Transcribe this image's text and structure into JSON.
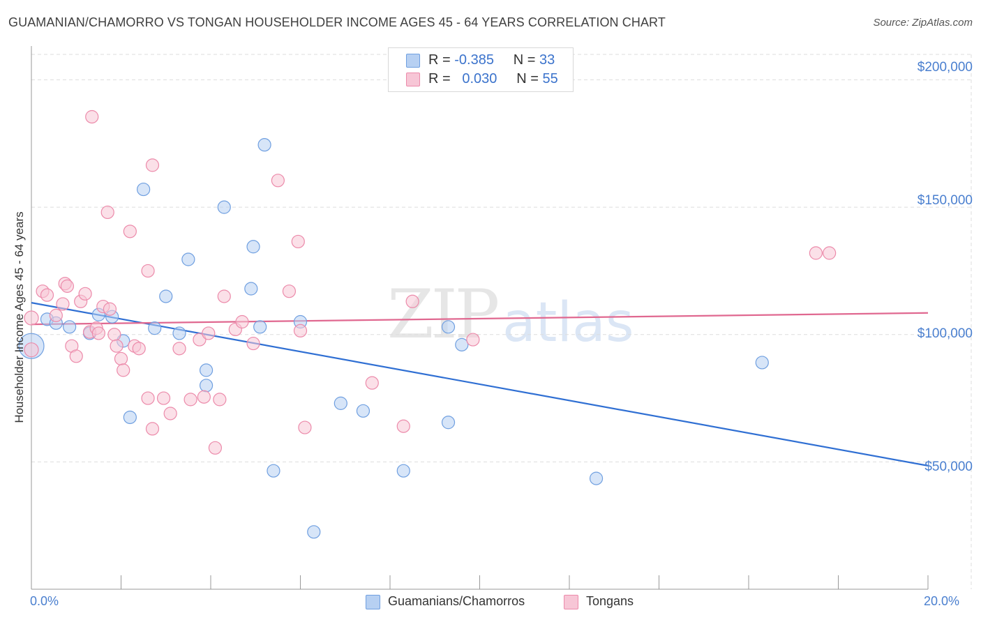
{
  "title": "GUAMANIAN/CHAMORRO VS TONGAN HOUSEHOLDER INCOME AGES 45 - 64 YEARS CORRELATION CHART",
  "source": "Source: ZipAtlas.com",
  "watermark": {
    "zip": "ZIP",
    "atlas": "atlas"
  },
  "legend_top": {
    "rows": [
      {
        "r_label": "R =",
        "r_value": "-0.385",
        "n_label": "N =",
        "n_value": "33"
      },
      {
        "r_label": "R =",
        "r_value": "0.030",
        "n_label": "N =",
        "n_value": "55"
      }
    ]
  },
  "legend_bottom": {
    "series1": "Guamanians/Chamorros",
    "series2": "Tongans"
  },
  "colors": {
    "blue_fill": "#b7d0f2",
    "blue_stroke": "#6f9fe0",
    "blue_line": "#2f6fd3",
    "pink_fill": "#f7c6d6",
    "pink_stroke": "#ec8aaa",
    "pink_line": "#e06890",
    "grid": "#dddddd",
    "axis": "#999999"
  },
  "chart_data": {
    "type": "scatter",
    "title": "GUAMANIAN/CHAMORRO VS TONGAN HOUSEHOLDER INCOME AGES 45 - 64 YEARS CORRELATION CHART",
    "xlabel": "",
    "ylabel": "Householder Income Ages 45 - 64 years",
    "xlim": [
      0,
      20
    ],
    "ylim": [
      0,
      210000
    ],
    "x_tick_labels": [
      "0.0%",
      "20.0%"
    ],
    "y_ticks": [
      50000,
      100000,
      150000,
      200000
    ],
    "y_tick_labels": [
      "$50,000",
      "$100,000",
      "$150,000",
      "$200,000"
    ],
    "series": [
      {
        "name": "Guamanians/Chamorros",
        "color": "blue",
        "points": [
          [
            0.0,
            95500,
            18
          ],
          [
            0.35,
            106000,
            9
          ],
          [
            0.55,
            104500,
            9
          ],
          [
            0.85,
            103000,
            9
          ],
          [
            1.3,
            100500,
            9
          ],
          [
            1.5,
            107800,
            9
          ],
          [
            1.8,
            107000,
            9
          ],
          [
            2.05,
            97500,
            9
          ],
          [
            2.2,
            67500,
            9
          ],
          [
            2.5,
            157000,
            9
          ],
          [
            2.75,
            102500,
            9
          ],
          [
            3.0,
            115000,
            9
          ],
          [
            3.3,
            100500,
            9
          ],
          [
            3.5,
            129500,
            9
          ],
          [
            3.9,
            80000,
            9
          ],
          [
            3.9,
            86000,
            9
          ],
          [
            4.3,
            150000,
            9
          ],
          [
            4.9,
            118000,
            9
          ],
          [
            4.95,
            134500,
            9
          ],
          [
            5.1,
            103000,
            9
          ],
          [
            5.2,
            174500,
            9
          ],
          [
            5.4,
            46500,
            9
          ],
          [
            6.0,
            105000,
            9
          ],
          [
            6.3,
            22500,
            9
          ],
          [
            6.9,
            73000,
            9
          ],
          [
            7.4,
            70000,
            9
          ],
          [
            8.3,
            46500,
            9
          ],
          [
            9.3,
            103000,
            9
          ],
          [
            9.3,
            65500,
            9
          ],
          [
            9.6,
            96000,
            9
          ],
          [
            12.6,
            43500,
            9
          ],
          [
            16.3,
            89000,
            9
          ]
        ]
      },
      {
        "name": "Tongans",
        "color": "pink",
        "points": [
          [
            0.0,
            94000,
            10
          ],
          [
            0.0,
            106500,
            10
          ],
          [
            0.25,
            117000,
            9
          ],
          [
            0.35,
            115500,
            9
          ],
          [
            0.55,
            107500,
            9
          ],
          [
            0.7,
            112000,
            9
          ],
          [
            0.75,
            120000,
            9
          ],
          [
            0.8,
            119000,
            9
          ],
          [
            0.9,
            95500,
            9
          ],
          [
            1.0,
            91500,
            9
          ],
          [
            1.1,
            113000,
            9
          ],
          [
            1.2,
            116000,
            9
          ],
          [
            1.3,
            101000,
            9
          ],
          [
            1.35,
            185500,
            9
          ],
          [
            1.45,
            102500,
            9
          ],
          [
            1.5,
            100500,
            9
          ],
          [
            1.6,
            111000,
            9
          ],
          [
            1.7,
            148000,
            9
          ],
          [
            1.75,
            110000,
            9
          ],
          [
            1.85,
            100000,
            9
          ],
          [
            1.9,
            95500,
            9
          ],
          [
            2.0,
            90500,
            9
          ],
          [
            2.05,
            86000,
            9
          ],
          [
            2.2,
            140500,
            9
          ],
          [
            2.3,
            95500,
            9
          ],
          [
            2.4,
            94500,
            9
          ],
          [
            2.6,
            125000,
            9
          ],
          [
            2.6,
            75000,
            9
          ],
          [
            2.7,
            63000,
            9
          ],
          [
            2.7,
            166500,
            9
          ],
          [
            2.95,
            75000,
            9
          ],
          [
            3.1,
            69000,
            9
          ],
          [
            3.3,
            94500,
            9
          ],
          [
            3.55,
            74500,
            9
          ],
          [
            3.75,
            98000,
            9
          ],
          [
            3.85,
            75500,
            9
          ],
          [
            3.95,
            100500,
            9
          ],
          [
            4.1,
            55500,
            9
          ],
          [
            4.2,
            74500,
            9
          ],
          [
            4.3,
            115000,
            9
          ],
          [
            4.55,
            102000,
            9
          ],
          [
            4.7,
            105000,
            9
          ],
          [
            4.95,
            96500,
            9
          ],
          [
            5.5,
            160500,
            9
          ],
          [
            5.75,
            117000,
            9
          ],
          [
            5.95,
            136500,
            9
          ],
          [
            6.0,
            101500,
            9
          ],
          [
            6.1,
            63500,
            9
          ],
          [
            7.6,
            81000,
            9
          ],
          [
            8.3,
            64000,
            9
          ],
          [
            8.5,
            113000,
            9
          ],
          [
            9.85,
            98000,
            9
          ],
          [
            17.5,
            132000,
            9
          ],
          [
            17.8,
            132000,
            9
          ]
        ]
      }
    ],
    "trend_lines": [
      {
        "series": "Guamanians/Chamorros",
        "x": [
          0,
          20
        ],
        "y": [
          112500,
          48500
        ]
      },
      {
        "series": "Tongans",
        "x": [
          0,
          20
        ],
        "y": [
          104000,
          108500
        ]
      }
    ]
  }
}
